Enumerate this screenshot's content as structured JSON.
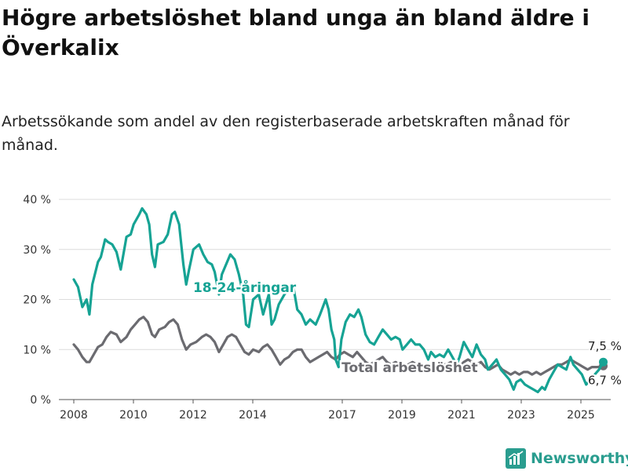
{
  "header": {
    "title": "Högre arbetslöshet bland unga än bland äldre i Överkalix",
    "subtitle": "Arbetssökande som andel av den registerbaserade arbetskraften månad för månad."
  },
  "brand": {
    "name": "Newsworthy",
    "color": "#2a9d8f",
    "icon": "bar-chart-logo-icon"
  },
  "chart_data": {
    "type": "line",
    "title": "Högre arbetslöshet bland unga än bland äldre i Överkalix",
    "subtitle": "Arbetssökande som andel av den registerbaserade arbetskraften månad för månad.",
    "xlabel": "",
    "ylabel": "",
    "xlim": [
      2007.5,
      2026.0
    ],
    "ylim": [
      0,
      40
    ],
    "x_ticks": [
      2008,
      2010,
      2012,
      2014,
      2017,
      2019,
      2021,
      2023,
      2025
    ],
    "x_tick_labels": [
      "2008",
      "2010",
      "2012",
      "2014",
      "2017",
      "2019",
      "2021",
      "2023",
      "2025"
    ],
    "y_ticks": [
      0,
      10,
      20,
      30,
      40
    ],
    "y_tick_labels": [
      "0 %",
      "10 %",
      "20 %",
      "30 %",
      "40 %"
    ],
    "grid": true,
    "legend": "none",
    "series": [
      {
        "name": "18-24-åringar",
        "color": "#16a394",
        "end_label": "7,5 %",
        "points": [
          [
            2008.0,
            24.0
          ],
          [
            2008.15,
            22.5
          ],
          [
            2008.3,
            18.5
          ],
          [
            2008.45,
            20.0
          ],
          [
            2008.55,
            17.0
          ],
          [
            2008.65,
            23.0
          ],
          [
            2008.85,
            27.5
          ],
          [
            2008.95,
            28.5
          ],
          [
            2009.1,
            32.0
          ],
          [
            2009.2,
            31.5
          ],
          [
            2009.35,
            31.0
          ],
          [
            2009.5,
            29.5
          ],
          [
            2009.65,
            26.0
          ],
          [
            2009.85,
            32.5
          ],
          [
            2010.0,
            33.0
          ],
          [
            2010.1,
            35.0
          ],
          [
            2010.3,
            37.0
          ],
          [
            2010.4,
            38.2
          ],
          [
            2010.55,
            37.0
          ],
          [
            2010.65,
            35.0
          ],
          [
            2010.75,
            29.0
          ],
          [
            2010.85,
            26.5
          ],
          [
            2010.95,
            31.0
          ],
          [
            2011.15,
            31.5
          ],
          [
            2011.3,
            33.0
          ],
          [
            2011.45,
            37.0
          ],
          [
            2011.55,
            37.5
          ],
          [
            2011.7,
            35.0
          ],
          [
            2011.85,
            27.0
          ],
          [
            2011.95,
            23.0
          ],
          [
            2012.05,
            26.0
          ],
          [
            2012.2,
            30.0
          ],
          [
            2012.4,
            31.0
          ],
          [
            2012.55,
            29.0
          ],
          [
            2012.7,
            27.5
          ],
          [
            2012.85,
            27.0
          ],
          [
            2012.95,
            25.5
          ],
          [
            2013.1,
            21.0
          ],
          [
            2013.2,
            25.0
          ],
          [
            2013.35,
            27.0
          ],
          [
            2013.5,
            29.0
          ],
          [
            2013.65,
            28.0
          ],
          [
            2013.8,
            25.0
          ],
          [
            2013.95,
            21.0
          ],
          [
            2014.05,
            15.0
          ],
          [
            2014.15,
            14.5
          ],
          [
            2014.3,
            20.0
          ],
          [
            2014.5,
            21.0
          ],
          [
            2014.65,
            17.0
          ],
          [
            2014.85,
            21.0
          ],
          [
            2014.95,
            15.0
          ],
          [
            2015.05,
            16.0
          ],
          [
            2015.2,
            19.0
          ],
          [
            2015.4,
            21.0
          ],
          [
            2015.55,
            22.0
          ],
          [
            2015.7,
            23.0
          ],
          [
            2015.85,
            18.0
          ],
          [
            2016.0,
            17.0
          ],
          [
            2016.15,
            15.0
          ],
          [
            2016.3,
            16.0
          ],
          [
            2016.5,
            15.0
          ],
          [
            2016.65,
            17.0
          ],
          [
            2016.85,
            20.0
          ],
          [
            2016.95,
            18.0
          ],
          [
            2017.05,
            14.0
          ],
          [
            2017.15,
            12.0
          ],
          [
            2017.2,
            8.0
          ],
          [
            2017.3,
            6.5
          ],
          [
            2017.4,
            12.0
          ],
          [
            2017.55,
            15.5
          ],
          [
            2017.7,
            17.0
          ],
          [
            2017.85,
            16.5
          ],
          [
            2018.0,
            18.0
          ],
          [
            2018.1,
            16.5
          ],
          [
            2018.25,
            13.0
          ],
          [
            2018.4,
            11.5
          ],
          [
            2018.55,
            11.0
          ],
          [
            2018.7,
            12.5
          ],
          [
            2018.85,
            14.0
          ],
          [
            2019.0,
            13.0
          ],
          [
            2019.15,
            12.0
          ],
          [
            2019.3,
            12.5
          ],
          [
            2019.45,
            12.0
          ],
          [
            2019.55,
            10.0
          ],
          [
            2019.7,
            11.0
          ],
          [
            2019.85,
            12.0
          ],
          [
            2020.0,
            11.0
          ],
          [
            2020.15,
            11.0
          ],
          [
            2020.3,
            10.0
          ],
          [
            2020.45,
            8.0
          ],
          [
            2020.55,
            9.5
          ],
          [
            2020.7,
            8.5
          ],
          [
            2020.85,
            9.0
          ],
          [
            2021.0,
            8.5
          ],
          [
            2021.15,
            10.0
          ],
          [
            2021.3,
            8.5
          ],
          [
            2021.45,
            7.0
          ],
          [
            2021.55,
            8.5
          ],
          [
            2021.7,
            11.5
          ],
          [
            2021.85,
            10.0
          ],
          [
            2022.0,
            8.5
          ],
          [
            2022.15,
            11.0
          ],
          [
            2022.3,
            9.0
          ],
          [
            2022.45,
            8.0
          ],
          [
            2022.55,
            6.0
          ],
          [
            2022.7,
            7.0
          ],
          [
            2022.85,
            8.0
          ],
          [
            2023.0,
            6.0
          ],
          [
            2023.15,
            5.0
          ],
          [
            2023.3,
            4.0
          ],
          [
            2023.45,
            2.0
          ],
          [
            2023.55,
            3.5
          ],
          [
            2023.7,
            4.0
          ],
          [
            2023.85,
            3.0
          ],
          [
            2024.0,
            2.5
          ],
          [
            2024.15,
            2.0
          ],
          [
            2024.3,
            1.5
          ],
          [
            2024.45,
            2.5
          ],
          [
            2024.55,
            2.0
          ],
          [
            2024.7,
            4.0
          ],
          [
            2024.85,
            5.5
          ],
          [
            2025.0,
            7.0
          ],
          [
            2025.15,
            6.5
          ],
          [
            2025.3,
            6.0
          ],
          [
            2025.45,
            8.5
          ],
          [
            2025.55,
            7.0
          ],
          [
            2025.7,
            6.0
          ],
          [
            2025.85,
            5.0
          ],
          [
            2026.0,
            3.0
          ],
          [
            2026.15,
            4.0
          ],
          [
            2026.3,
            5.0
          ],
          [
            2026.45,
            6.0
          ],
          [
            2026.6,
            7.5
          ]
        ]
      },
      {
        "name": "Total arbetslöshet",
        "color": "#6b6b70",
        "end_label": "6,7 %",
        "points": [
          [
            2008.0,
            11.0
          ],
          [
            2008.15,
            10.0
          ],
          [
            2008.3,
            8.5
          ],
          [
            2008.45,
            7.5
          ],
          [
            2008.55,
            7.5
          ],
          [
            2008.7,
            9.0
          ],
          [
            2008.85,
            10.5
          ],
          [
            2009.0,
            11.0
          ],
          [
            2009.15,
            12.5
          ],
          [
            2009.3,
            13.5
          ],
          [
            2009.5,
            13.0
          ],
          [
            2009.65,
            11.5
          ],
          [
            2009.85,
            12.5
          ],
          [
            2010.0,
            14.0
          ],
          [
            2010.15,
            15.0
          ],
          [
            2010.3,
            16.0
          ],
          [
            2010.45,
            16.5
          ],
          [
            2010.6,
            15.5
          ],
          [
            2010.75,
            13.0
          ],
          [
            2010.85,
            12.5
          ],
          [
            2011.0,
            14.0
          ],
          [
            2011.2,
            14.5
          ],
          [
            2011.35,
            15.5
          ],
          [
            2011.5,
            16.0
          ],
          [
            2011.65,
            15.0
          ],
          [
            2011.8,
            12.0
          ],
          [
            2011.95,
            10.0
          ],
          [
            2012.1,
            11.0
          ],
          [
            2012.3,
            11.5
          ],
          [
            2012.5,
            12.5
          ],
          [
            2012.65,
            13.0
          ],
          [
            2012.8,
            12.5
          ],
          [
            2012.95,
            11.5
          ],
          [
            2013.1,
            9.5
          ],
          [
            2013.25,
            11.0
          ],
          [
            2013.4,
            12.5
          ],
          [
            2013.55,
            13.0
          ],
          [
            2013.7,
            12.5
          ],
          [
            2013.85,
            11.0
          ],
          [
            2014.0,
            9.5
          ],
          [
            2014.15,
            9.0
          ],
          [
            2014.3,
            10.0
          ],
          [
            2014.5,
            9.5
          ],
          [
            2014.65,
            10.5
          ],
          [
            2014.8,
            11.0
          ],
          [
            2014.95,
            10.0
          ],
          [
            2015.1,
            8.5
          ],
          [
            2015.25,
            7.0
          ],
          [
            2015.4,
            8.0
          ],
          [
            2015.55,
            8.5
          ],
          [
            2015.7,
            9.5
          ],
          [
            2015.85,
            10.0
          ],
          [
            2016.0,
            10.0
          ],
          [
            2016.15,
            8.5
          ],
          [
            2016.3,
            7.5
          ],
          [
            2016.45,
            8.0
          ],
          [
            2016.6,
            8.5
          ],
          [
            2016.75,
            9.0
          ],
          [
            2016.9,
            9.5
          ],
          [
            2017.05,
            8.5
          ],
          [
            2017.2,
            8.0
          ],
          [
            2017.35,
            9.0
          ],
          [
            2017.5,
            9.5
          ],
          [
            2017.65,
            9.0
          ],
          [
            2017.8,
            8.5
          ],
          [
            2017.95,
            9.5
          ],
          [
            2018.1,
            8.5
          ],
          [
            2018.25,
            7.5
          ],
          [
            2018.4,
            7.0
          ],
          [
            2018.55,
            7.5
          ],
          [
            2018.7,
            8.0
          ],
          [
            2018.85,
            8.5
          ],
          [
            2019.0,
            7.5
          ],
          [
            2019.15,
            7.0
          ],
          [
            2019.3,
            7.5
          ],
          [
            2019.45,
            7.0
          ],
          [
            2019.6,
            6.5
          ],
          [
            2019.75,
            7.0
          ],
          [
            2019.9,
            7.5
          ],
          [
            2020.05,
            7.0
          ],
          [
            2020.2,
            6.5
          ],
          [
            2020.35,
            6.0
          ],
          [
            2020.5,
            7.0
          ],
          [
            2020.65,
            7.0
          ],
          [
            2020.8,
            7.5
          ],
          [
            2020.95,
            7.0
          ],
          [
            2021.1,
            7.0
          ],
          [
            2021.25,
            7.5
          ],
          [
            2021.4,
            7.0
          ],
          [
            2021.55,
            6.5
          ],
          [
            2021.7,
            7.5
          ],
          [
            2021.85,
            8.0
          ],
          [
            2022.0,
            7.5
          ],
          [
            2022.15,
            7.0
          ],
          [
            2022.3,
            7.5
          ],
          [
            2022.45,
            6.5
          ],
          [
            2022.6,
            6.0
          ],
          [
            2022.75,
            6.5
          ],
          [
            2022.9,
            7.0
          ],
          [
            2023.05,
            6.0
          ],
          [
            2023.2,
            5.5
          ],
          [
            2023.35,
            5.0
          ],
          [
            2023.5,
            5.5
          ],
          [
            2023.65,
            5.0
          ],
          [
            2023.8,
            5.5
          ],
          [
            2023.95,
            5.5
          ],
          [
            2024.1,
            5.0
          ],
          [
            2024.25,
            5.5
          ],
          [
            2024.4,
            5.0
          ],
          [
            2024.55,
            5.5
          ],
          [
            2024.7,
            6.0
          ],
          [
            2024.85,
            6.5
          ],
          [
            2025.0,
            7.0
          ],
          [
            2025.15,
            7.0
          ],
          [
            2025.3,
            7.5
          ],
          [
            2025.45,
            8.0
          ],
          [
            2025.6,
            7.5
          ],
          [
            2025.75,
            7.0
          ],
          [
            2025.9,
            6.5
          ],
          [
            2026.05,
            6.0
          ],
          [
            2026.2,
            6.5
          ],
          [
            2026.4,
            6.5
          ],
          [
            2026.6,
            6.7
          ]
        ]
      }
    ],
    "annotations": [
      {
        "text": "18-24-åringar",
        "series": 0,
        "x": 2014.0,
        "y": 21.5
      },
      {
        "text": "Total arbetslöshet",
        "series": 1,
        "x": 2019.8,
        "y": 5.5
      }
    ]
  }
}
